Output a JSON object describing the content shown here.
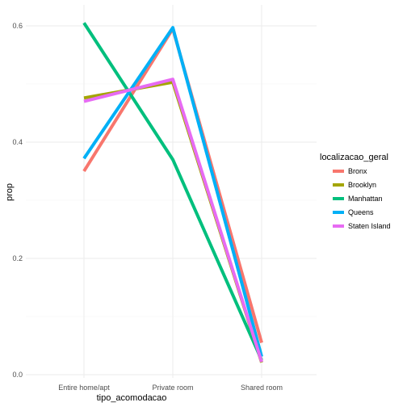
{
  "chart_data": {
    "type": "line",
    "title": "",
    "xlabel": "tipo_acomodacao",
    "ylabel": "prop",
    "categories": [
      "Entire home/apt",
      "Private room",
      "Shared room"
    ],
    "ylim": [
      0,
      0.6
    ],
    "yticks": [
      "0.0",
      "0.2",
      "0.4",
      "0.6"
    ],
    "ytick_values": [
      0,
      0.2,
      0.4,
      0.6
    ],
    "grid": true,
    "legend": {
      "title": "localizacao_geral",
      "position": "right"
    },
    "series": [
      {
        "name": "Bronx",
        "color": "#F8766D",
        "values": [
          0.35,
          0.595,
          0.055
        ]
      },
      {
        "name": "Brooklyn",
        "color": "#A3A500",
        "values": [
          0.476,
          0.503,
          0.021
        ]
      },
      {
        "name": "Manhattan",
        "color": "#00BF7D",
        "values": [
          0.605,
          0.37,
          0.025
        ]
      },
      {
        "name": "Queens",
        "color": "#00B0F6",
        "values": [
          0.372,
          0.597,
          0.031
        ]
      },
      {
        "name": "Staten Island",
        "color": "#E76BF3",
        "values": [
          0.47,
          0.508,
          0.022
        ]
      }
    ]
  }
}
